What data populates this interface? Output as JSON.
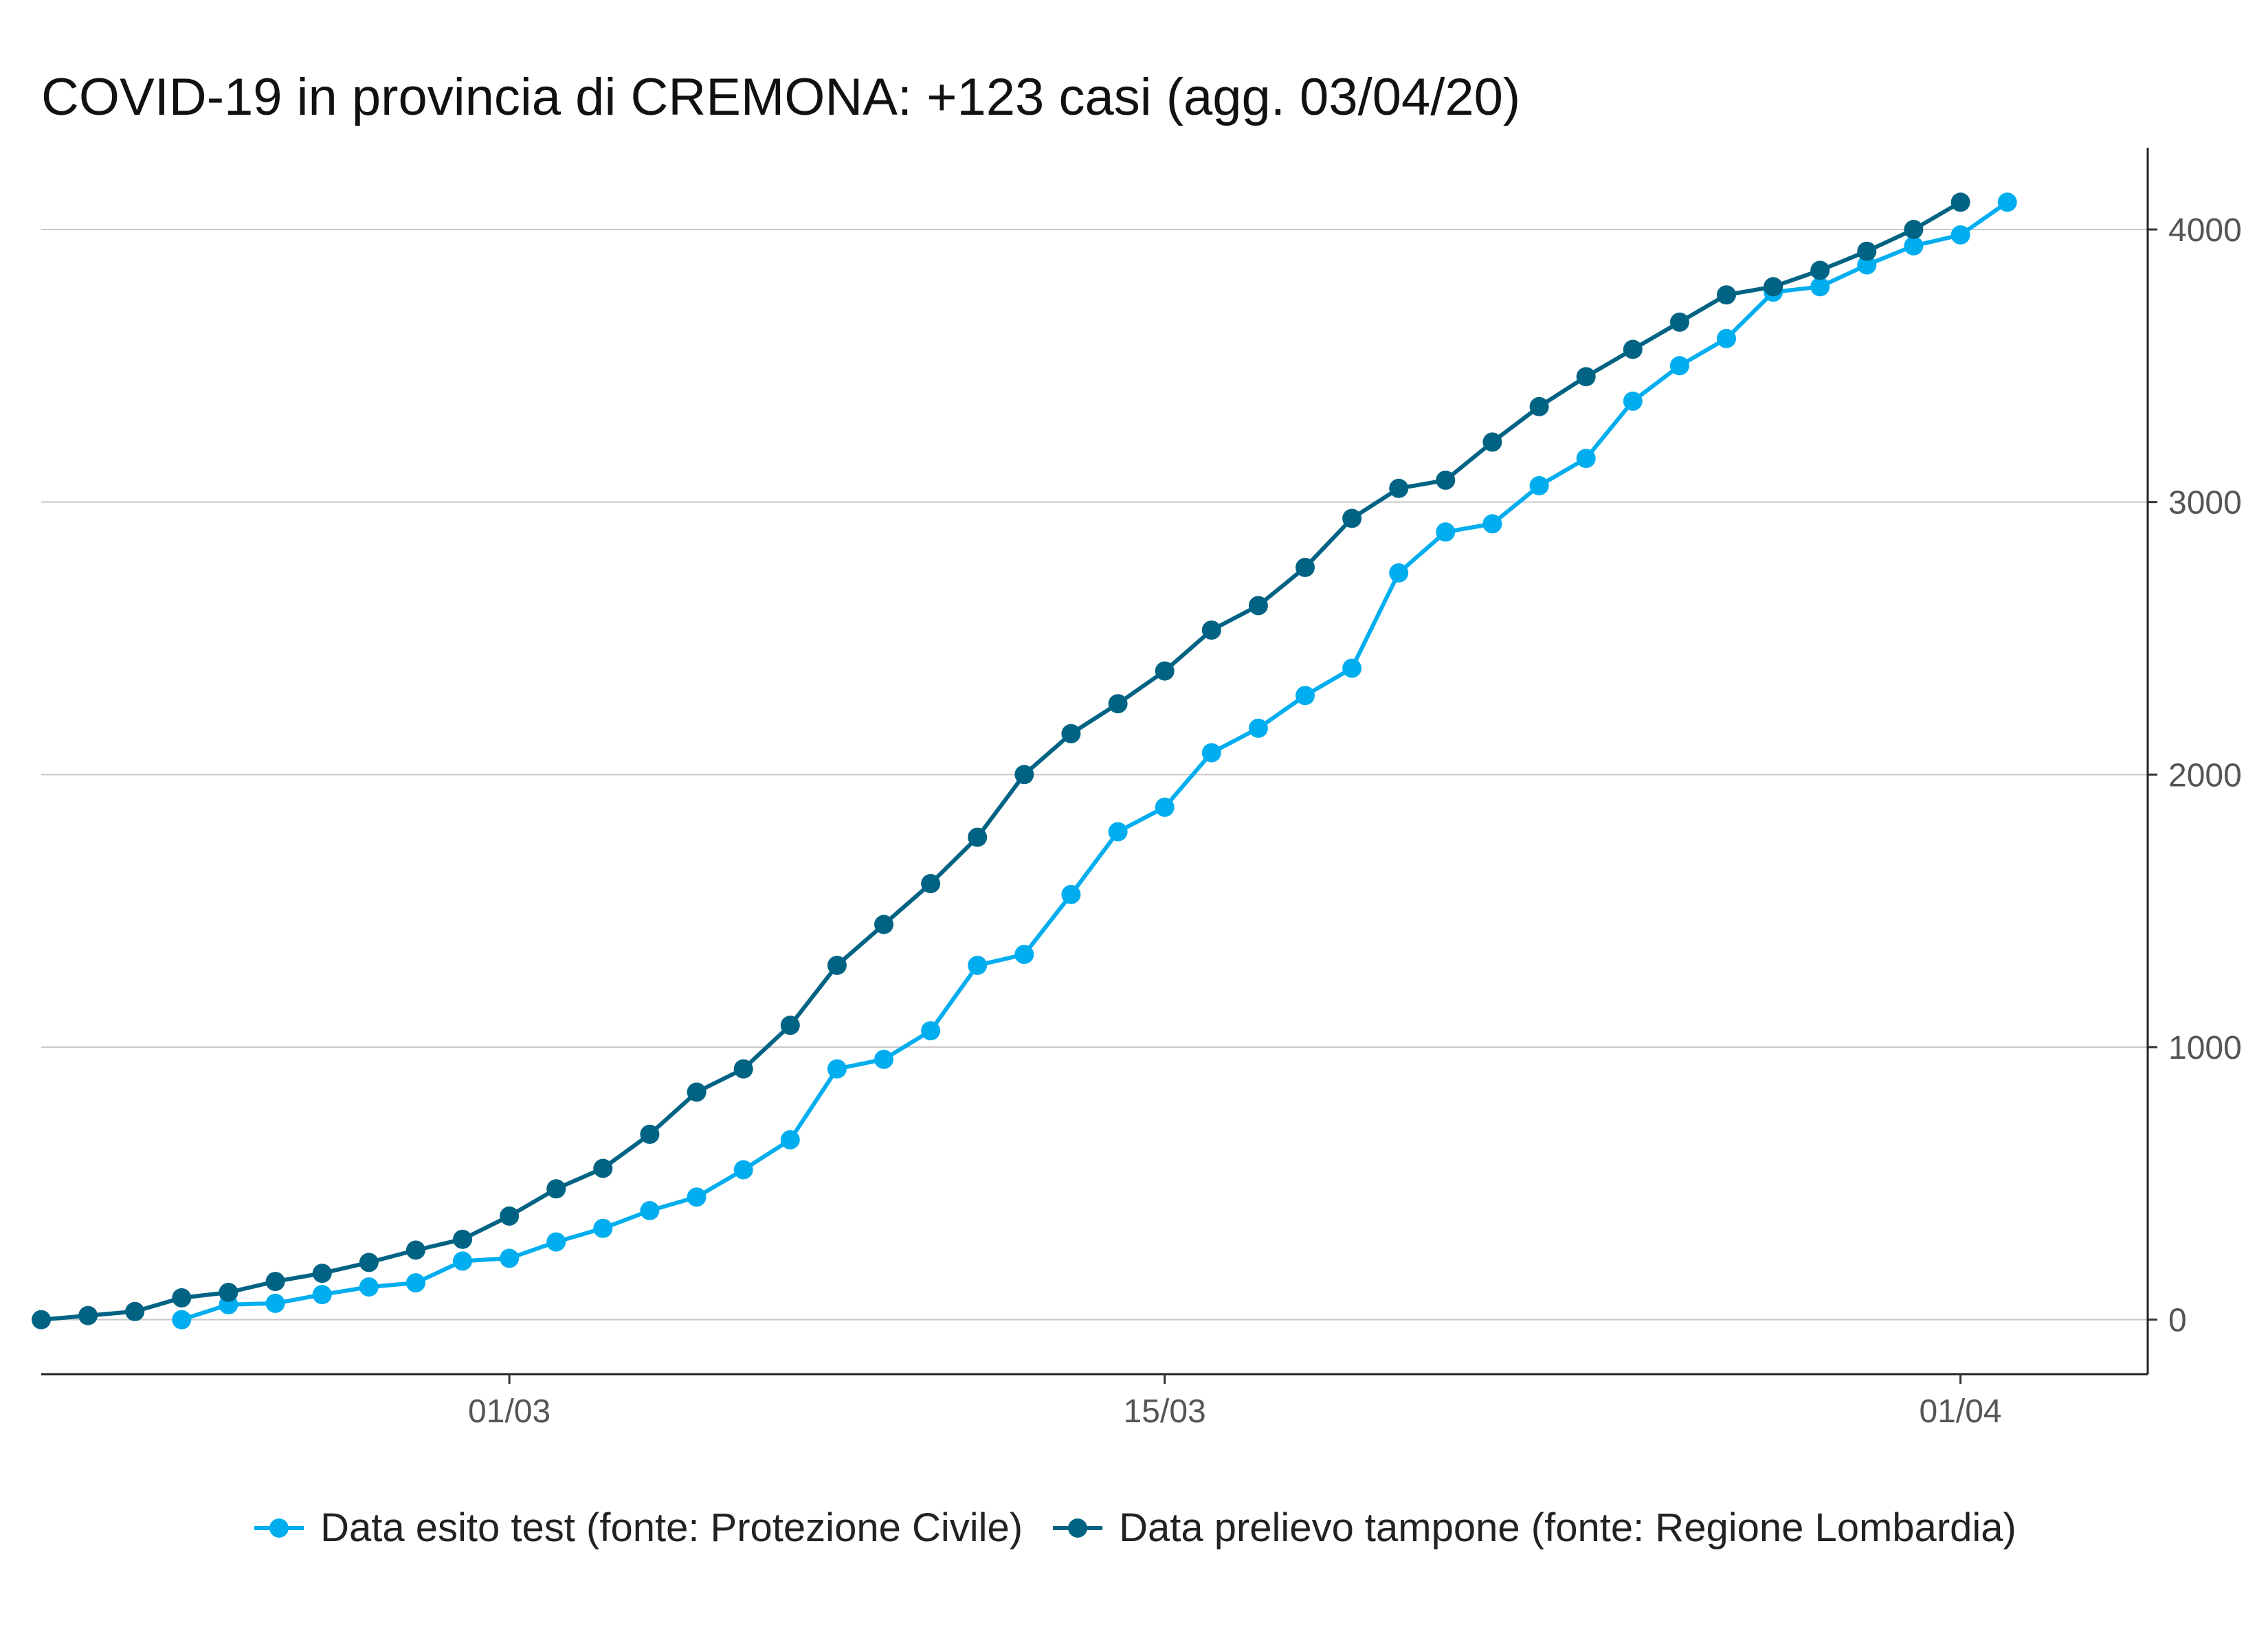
{
  "chart_data": {
    "type": "line",
    "title": "COVID-19 in provincia di CREMONA: +123 casi (agg. 03/04/20)",
    "xlabel": "",
    "ylabel": "",
    "x_axis": {
      "type": "date",
      "range": [
        "2020-02-20",
        "2020-04-05"
      ],
      "ticks": [
        {
          "date": "2020-03-01",
          "label": "01/03"
        },
        {
          "date": "2020-03-15",
          "label": "15/03"
        },
        {
          "date": "2020-04-01",
          "label": "01/04"
        }
      ]
    },
    "y_axis": {
      "position": "right",
      "range": [
        -200,
        4300
      ],
      "ticks": [
        0,
        1000,
        2000,
        3000,
        4000
      ]
    },
    "grid": {
      "horizontal": true,
      "vertical": false
    },
    "legend": "bottom",
    "series": [
      {
        "name": "Data esito test (fonte: Protezione Civile)",
        "color": "#00AEEF",
        "start_date": "2020-02-23",
        "values": [
          0,
          55,
          60,
          92,
          120,
          135,
          215,
          225,
          285,
          335,
          400,
          450,
          550,
          660,
          920,
          955,
          1060,
          1300,
          1340,
          1560,
          1790,
          1880,
          2080,
          2170,
          2290,
          2390,
          2740,
          2890,
          2920,
          3060,
          3160,
          3370,
          3500,
          3600,
          3770,
          3790,
          3870,
          3940,
          3980,
          4100
        ]
      },
      {
        "name": "Data prelievo tampone (fonte: Regione Lombardia)",
        "color": "#006383",
        "start_date": "2020-02-20",
        "values": [
          0,
          15,
          30,
          80,
          100,
          140,
          170,
          210,
          255,
          295,
          380,
          480,
          555,
          680,
          835,
          920,
          1080,
          1300,
          1450,
          1600,
          1770,
          2000,
          2150,
          2260,
          2380,
          2530,
          2620,
          2760,
          2940,
          3050,
          3080,
          3220,
          3350,
          3460,
          3560,
          3660,
          3760,
          3790,
          3850,
          3920,
          4000,
          4100
        ]
      }
    ]
  }
}
